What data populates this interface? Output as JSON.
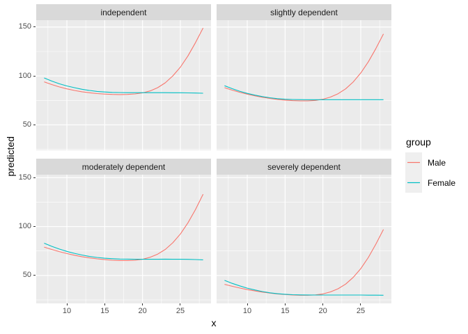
{
  "figure": {
    "bg": "#FFFFFF"
  },
  "legend": {
    "title": "group",
    "items": [
      {
        "label": "Male",
        "color": "#F8766D"
      },
      {
        "label": "Female",
        "color": "#00BFC4"
      }
    ]
  },
  "chart_data": {
    "type": "line",
    "title": "",
    "xlabel": "x",
    "ylabel": "predicted",
    "legend_position": "right",
    "grid": true,
    "panel_bg": "#EBEBEB",
    "strip_bg": "#D9D9D9",
    "grid_color": "#FFFFFF",
    "xlim": [
      5.95,
      29.05
    ],
    "ylim": [
      21.5,
      157
    ],
    "xticks": [
      10,
      15,
      20,
      25
    ],
    "yticks": [
      50,
      100,
      150
    ],
    "x_minor": [
      7.5,
      12.5,
      17.5,
      22.5,
      27.5
    ],
    "y_minor": [
      25,
      75,
      125
    ],
    "x": [
      7,
      8,
      9,
      10,
      11,
      12,
      13,
      14,
      15,
      16,
      17,
      18,
      19,
      20,
      21,
      22,
      23,
      24,
      25,
      26,
      27,
      28
    ],
    "facets": [
      {
        "label": "independent",
        "series": [
          {
            "name": "Male",
            "color": "#F8766D",
            "values": [
              94.0,
              91.2,
              88.8,
              86.8,
              85.2,
              83.8,
              82.8,
              82.0,
              81.5,
              81.1,
              81.0,
              81.1,
              81.6,
              82.7,
              84.7,
              88.0,
              93.0,
              100.0,
              109.0,
              120.5,
              134.0,
              149.0
            ]
          },
          {
            "name": "Female",
            "color": "#00BFC4",
            "values": [
              98.0,
              94.8,
              92.0,
              89.8,
              88.0,
              86.4,
              85.2,
              84.2,
              83.6,
              83.2,
              83.0,
              82.9,
              82.9,
              82.9,
              82.9,
              82.9,
              82.9,
              82.8,
              82.8,
              82.7,
              82.5,
              82.3
            ]
          }
        ]
      },
      {
        "label": "slightly dependent",
        "series": [
          {
            "name": "Male",
            "color": "#F8766D",
            "values": [
              88.0,
              85.5,
              83.3,
              81.4,
              79.7,
              78.2,
              77.0,
              76.0,
              75.3,
              74.8,
              74.6,
              74.6,
              75.0,
              76.2,
              78.4,
              81.8,
              86.8,
              93.8,
              103.0,
              114.5,
              128.0,
              143.0
            ]
          },
          {
            "name": "Female",
            "color": "#00BFC4",
            "values": [
              90.0,
              87.0,
              84.4,
              82.2,
              80.4,
              78.9,
              77.7,
              76.8,
              76.2,
              75.9,
              75.8,
              75.7,
              75.7,
              75.7,
              75.7,
              75.7,
              75.7,
              75.7,
              75.7,
              75.7,
              75.7,
              75.7
            ]
          }
        ]
      },
      {
        "label": "moderately dependent",
        "series": [
          {
            "name": "Male",
            "color": "#F8766D",
            "values": [
              79.0,
              76.6,
              74.4,
              72.4,
              70.7,
              69.2,
              68.0,
              67.0,
              66.2,
              65.6,
              65.2,
              65.2,
              65.6,
              66.6,
              68.6,
              71.8,
              76.6,
              83.4,
              92.4,
              103.8,
              117.4,
              133.0
            ]
          },
          {
            "name": "Female",
            "color": "#00BFC4",
            "values": [
              83.0,
              79.8,
              77.0,
              74.6,
              72.6,
              70.9,
              69.5,
              68.4,
              67.6,
              67.1,
              66.8,
              66.7,
              66.6,
              66.6,
              66.6,
              66.6,
              66.7,
              66.6,
              66.6,
              66.5,
              66.3,
              66.0
            ]
          }
        ]
      },
      {
        "label": "severely dependent",
        "series": [
          {
            "name": "Male",
            "color": "#F8766D",
            "values": [
              41.0,
              39.0,
              37.2,
              35.6,
              34.2,
              33.0,
              32.0,
              31.2,
              30.6,
              30.1,
              29.8,
              29.8,
              30.2,
              31.2,
              33.2,
              36.4,
              41.2,
              48.0,
              57.0,
              68.4,
              82.0,
              97.0
            ]
          },
          {
            "name": "Female",
            "color": "#00BFC4",
            "values": [
              45.0,
              42.0,
              39.4,
              37.1,
              35.2,
              33.6,
              32.3,
              31.4,
              30.8,
              30.4,
              30.2,
              30.1,
              30.0,
              30.0,
              30.0,
              30.0,
              30.0,
              30.0,
              30.0,
              29.9,
              29.9,
              29.8
            ]
          }
        ]
      }
    ]
  }
}
